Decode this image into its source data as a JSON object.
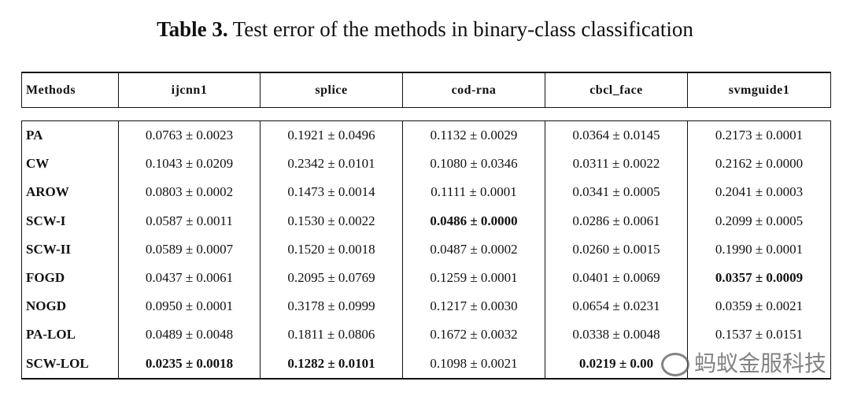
{
  "caption": {
    "label": "Table 3.",
    "text": "Test error of the methods in binary-class classification"
  },
  "table": {
    "header": [
      "Methods",
      "ijcnn1",
      "splice",
      "cod-rna",
      "cbcl_face",
      "svmguide1"
    ],
    "rows": [
      [
        "PA",
        "0.0763 ± 0.0023",
        "0.1921 ± 0.0496",
        "0.1132 ± 0.0029",
        "0.0364 ± 0.0145",
        "0.2173 ± 0.0001"
      ],
      [
        "CW",
        "0.1043 ± 0.0209",
        "0.2342 ± 0.0101",
        "0.1080 ± 0.0346",
        "0.0311 ± 0.0022",
        "0.2162 ± 0.0000"
      ],
      [
        "AROW",
        "0.0803 ± 0.0002",
        "0.1473 ± 0.0014",
        "0.1111 ± 0.0001",
        "0.0341 ± 0.0005",
        "0.2041 ± 0.0003"
      ],
      [
        "SCW-I",
        "0.0587 ± 0.0011",
        "0.1530 ± 0.0022",
        "0.0486 ± 0.0000",
        "0.0286 ± 0.0061",
        "0.2099 ± 0.0005"
      ],
      [
        "SCW-II",
        "0.0589 ± 0.0007",
        "0.1520 ± 0.0018",
        "0.0487 ± 0.0002",
        "0.0260 ± 0.0015",
        "0.1990 ± 0.0001"
      ],
      [
        "FOGD",
        "0.0437 ± 0.0061",
        "0.2095 ± 0.0769",
        "0.1259 ± 0.0001",
        "0.0401 ± 0.0069",
        "0.0357 ± 0.0009"
      ],
      [
        "NOGD",
        "0.0950 ± 0.0001",
        "0.3178 ± 0.0999",
        "0.1217 ± 0.0030",
        "0.0654 ± 0.0231",
        "0.0359 ± 0.0021"
      ],
      [
        "PA-LOL",
        "0.0489 ± 0.0048",
        "0.1811 ± 0.0806",
        "0.1672 ± 0.0032",
        "0.0338 ± 0.0048",
        "0.1537 ± 0.0151"
      ],
      [
        "SCW-LOL",
        "0.0235 ± 0.0018",
        "0.1282 ± 0.0101",
        "0.1098 ± 0.0021",
        "0.0219 ± 0.00",
        ""
      ]
    ],
    "bold_cells": [
      [
        3,
        3
      ],
      [
        5,
        5
      ],
      [
        8,
        1
      ],
      [
        8,
        2
      ],
      [
        8,
        4
      ]
    ]
  },
  "watermark": "蚂蚁金服科技"
}
